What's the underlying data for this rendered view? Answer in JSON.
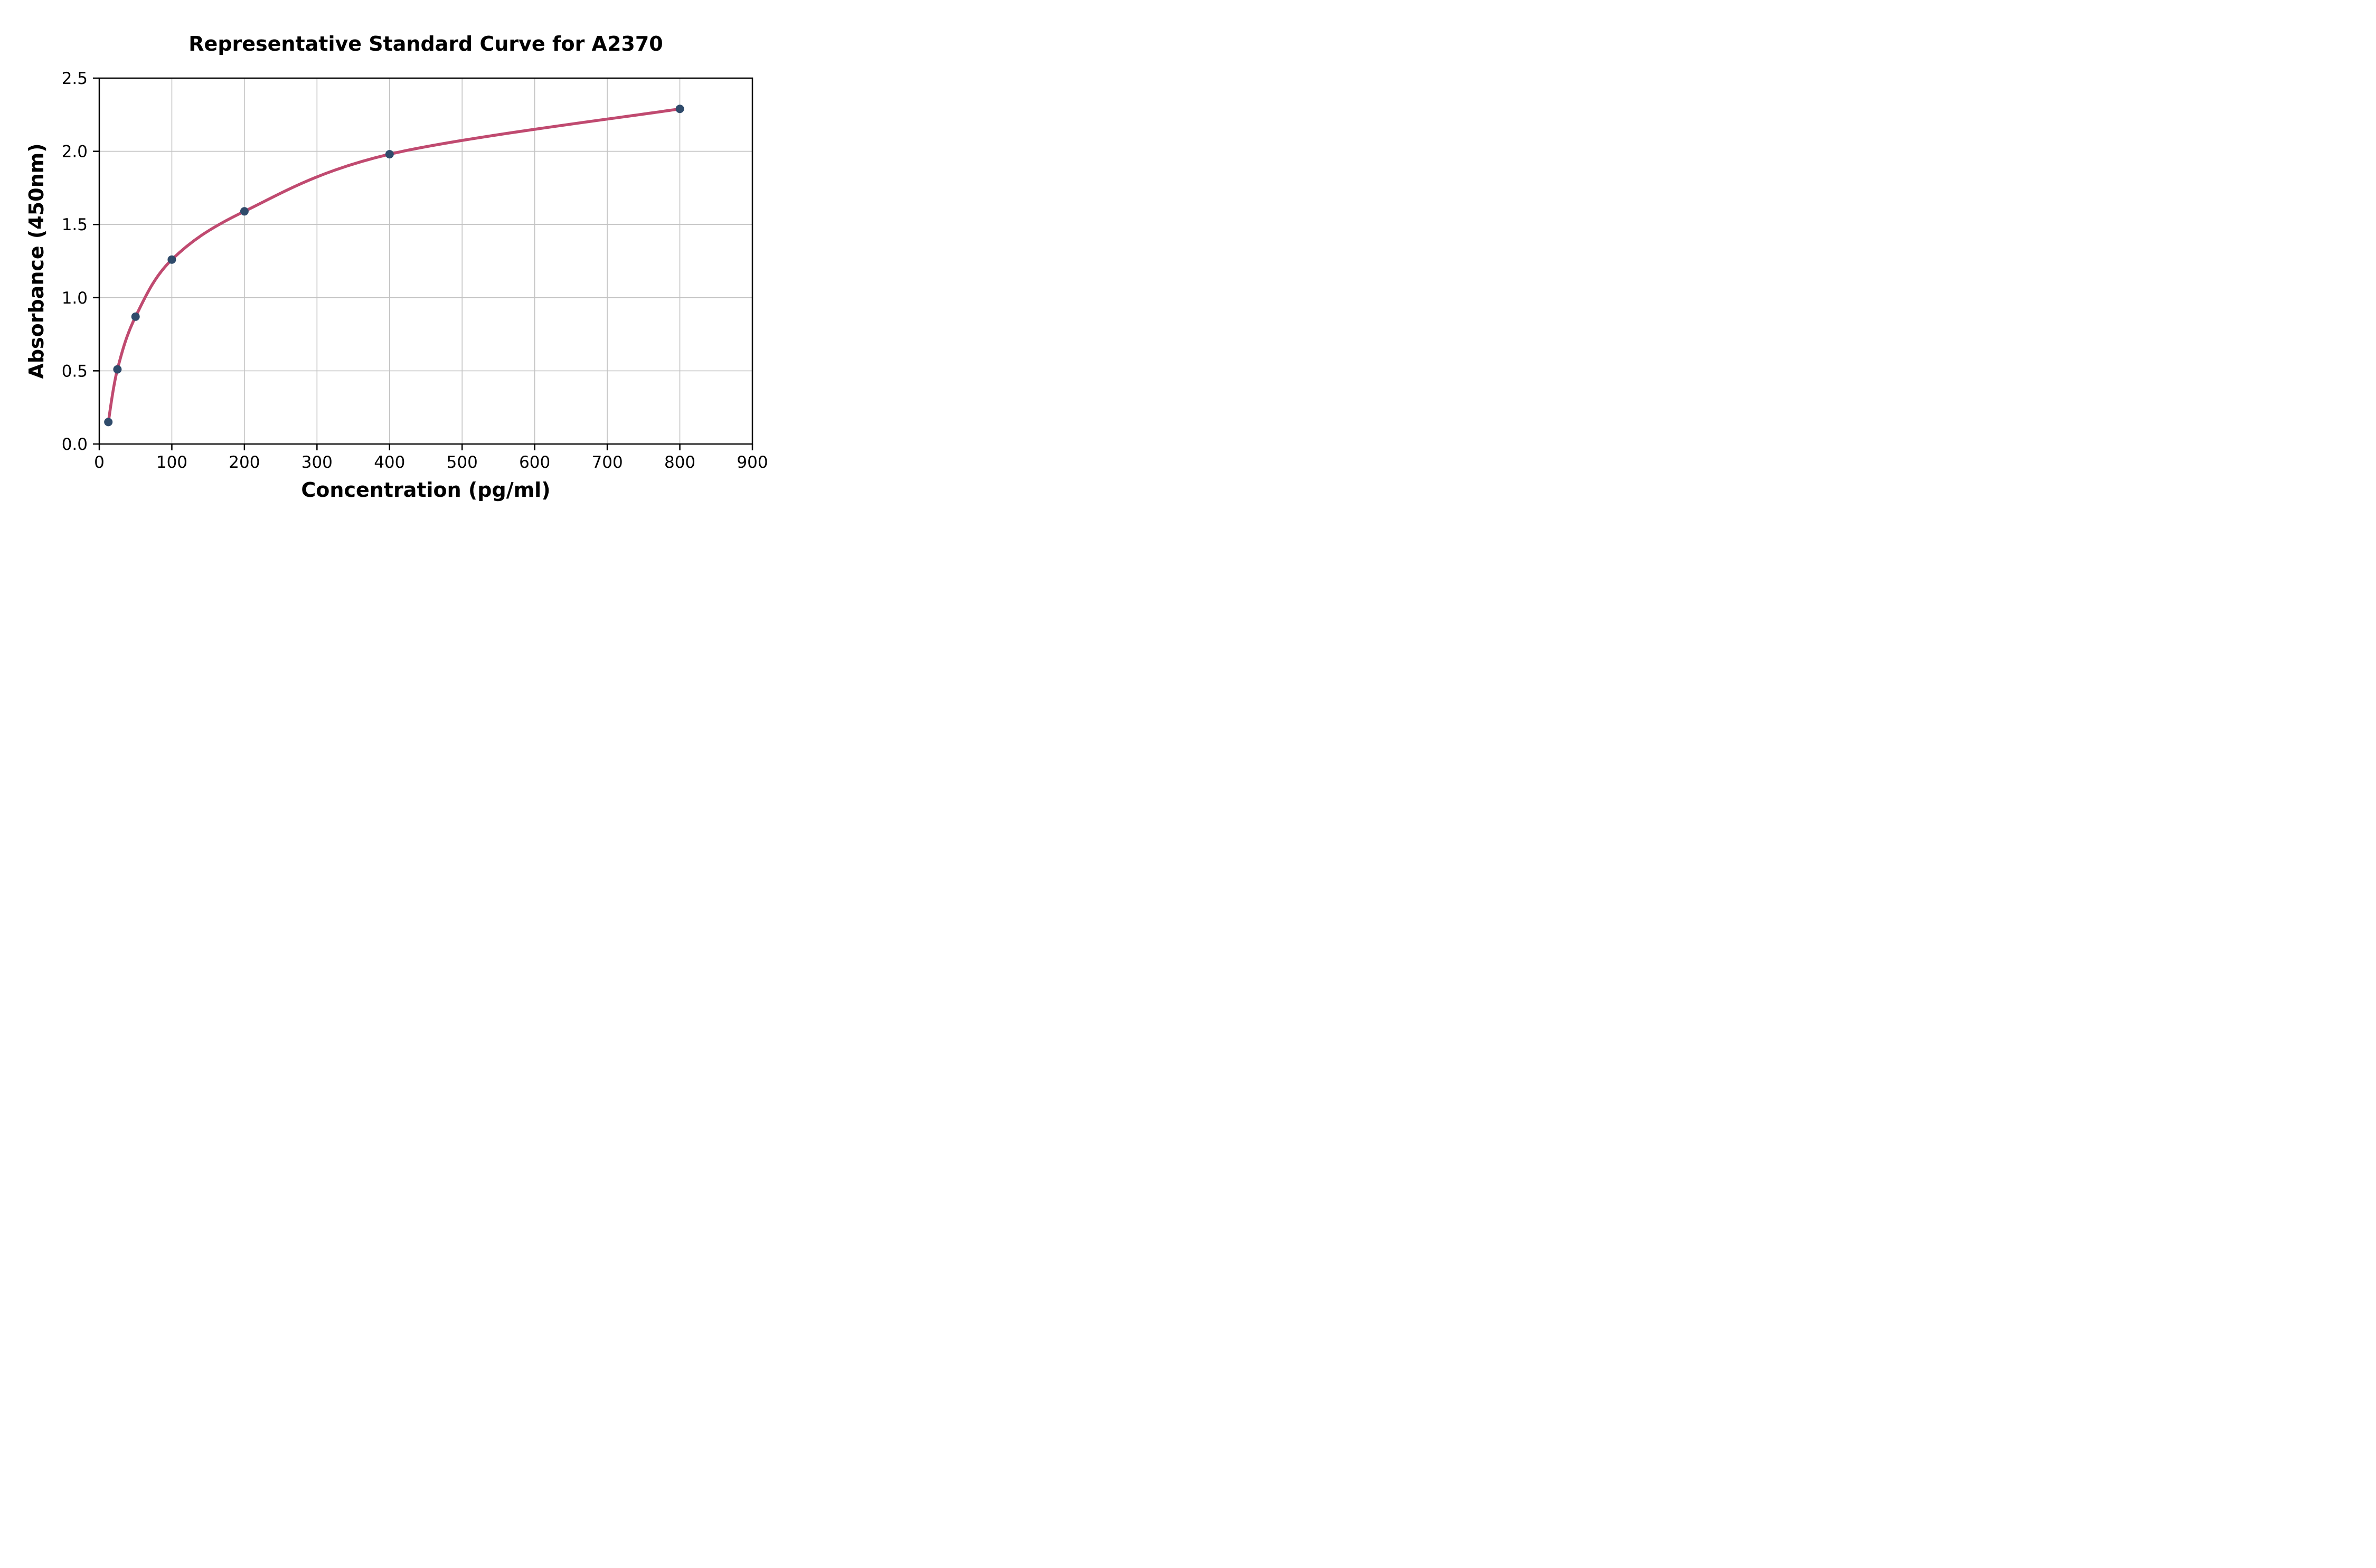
{
  "page": {
    "background": "#ffffff"
  },
  "chart_data": {
    "type": "scatter",
    "title": "Representative Standard Curve for A2370",
    "xlabel": "Concentration (pg/ml)",
    "ylabel": "Absorbance (450nm)",
    "xlim": [
      0,
      900
    ],
    "ylim": [
      0.0,
      2.5
    ],
    "x_ticks": [
      0,
      100,
      200,
      300,
      400,
      500,
      600,
      700,
      800,
      900
    ],
    "x_tick_labels": [
      "0",
      "100",
      "200",
      "300",
      "400",
      "500",
      "600",
      "700",
      "800",
      "900"
    ],
    "y_ticks": [
      0.0,
      0.5,
      1.0,
      1.5,
      2.0,
      2.5
    ],
    "y_tick_labels": [
      "0.0",
      "0.5",
      "1.0",
      "1.5",
      "2.0",
      "2.5"
    ],
    "grid": true,
    "legend_position": "none",
    "series": [
      {
        "name": "standard-curve",
        "x": [
          12.5,
          25,
          50,
          100,
          200,
          400,
          800
        ],
        "y": [
          0.15,
          0.51,
          0.87,
          1.26,
          1.59,
          1.98,
          2.29
        ],
        "marker_color": "#2f4b6b",
        "line_color": "#c04a70"
      }
    ],
    "colors": {
      "grid": "#c3c3c3",
      "axis": "#000000",
      "text": "#000000",
      "background": "#ffffff"
    }
  }
}
